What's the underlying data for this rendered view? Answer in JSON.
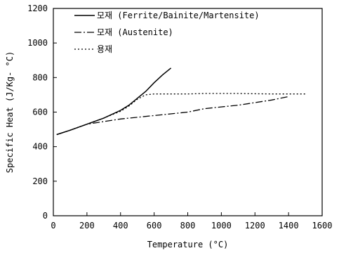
{
  "chart_data": {
    "type": "line",
    "title": "",
    "xlabel": "Temperature (°C)",
    "ylabel": "Specific Heat (J/Kg- °C)",
    "xlim": [
      0,
      1600
    ],
    "ylim": [
      0,
      1200
    ],
    "xticks": [
      0,
      200,
      400,
      600,
      800,
      1000,
      1200,
      1400,
      1600
    ],
    "yticks": [
      0,
      200,
      400,
      600,
      800,
      1000,
      1200
    ],
    "grid": false,
    "legend_position": "top-left",
    "series": [
      {
        "name": "모재 (Ferrite/Bainite/Martensite)",
        "style": "solid",
        "x": [
          20,
          100,
          200,
          300,
          400,
          450,
          500,
          550,
          600,
          650,
          700
        ],
        "y": [
          470,
          495,
          530,
          565,
          610,
          640,
          680,
          720,
          770,
          815,
          855
        ]
      },
      {
        "name": "모재 (Austenite)",
        "style": "dashdot",
        "x": [
          20,
          100,
          200,
          300,
          400,
          500,
          600,
          700,
          800,
          900,
          1000,
          1100,
          1200,
          1300,
          1400
        ],
        "y": [
          470,
          495,
          530,
          545,
          560,
          570,
          580,
          590,
          600,
          620,
          630,
          640,
          655,
          670,
          690
        ]
      },
      {
        "name": "용재",
        "style": "dotted",
        "x": [
          20,
          100,
          200,
          300,
          400,
          450,
          500,
          550,
          600,
          700,
          800,
          900,
          1000,
          1100,
          1200,
          1300,
          1400,
          1500
        ],
        "y": [
          470,
          495,
          530,
          565,
          605,
          635,
          675,
          700,
          705,
          705,
          705,
          708,
          708,
          708,
          706,
          705,
          705,
          705
        ]
      }
    ]
  }
}
